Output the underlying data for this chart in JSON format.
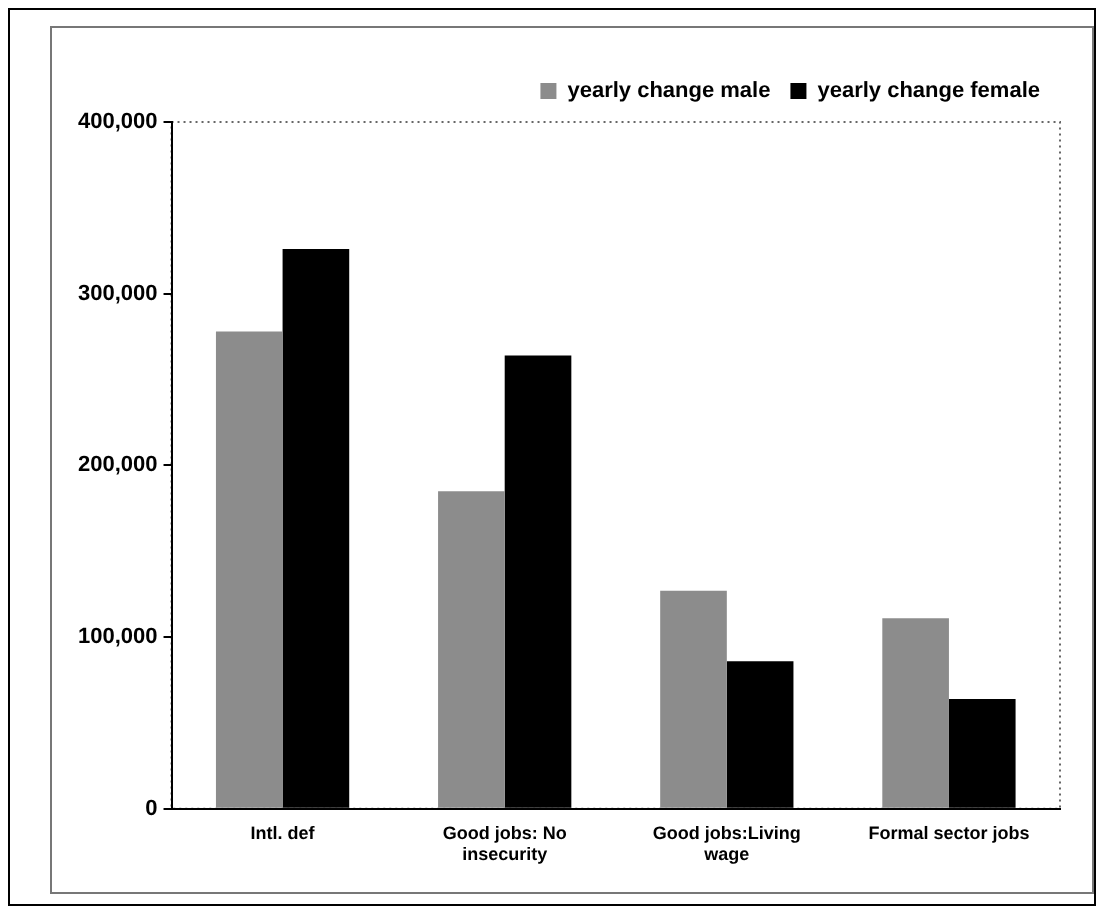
{
  "chart_data": {
    "type": "bar",
    "categories": [
      "Intl. def",
      "Good jobs: No insecurity",
      "Good jobs:Living wage",
      "Formal sector jobs"
    ],
    "series": [
      {
        "name": "yearly change male",
        "color": "#8c8c8c",
        "values": [
          278000,
          185000,
          127000,
          111000
        ]
      },
      {
        "name": "yearly change female",
        "color": "#000000",
        "values": [
          326000,
          264000,
          86000,
          64000
        ]
      }
    ],
    "ylim": [
      0,
      400000
    ],
    "yticks": [
      {
        "value": 0,
        "label": "0"
      },
      {
        "value": 100000,
        "label": "100,000"
      },
      {
        "value": 200000,
        "label": "200,000"
      },
      {
        "value": 300000,
        "label": "300,000"
      },
      {
        "value": 400000,
        "label": "400,000"
      }
    ],
    "grid": false,
    "legend": "top right"
  }
}
